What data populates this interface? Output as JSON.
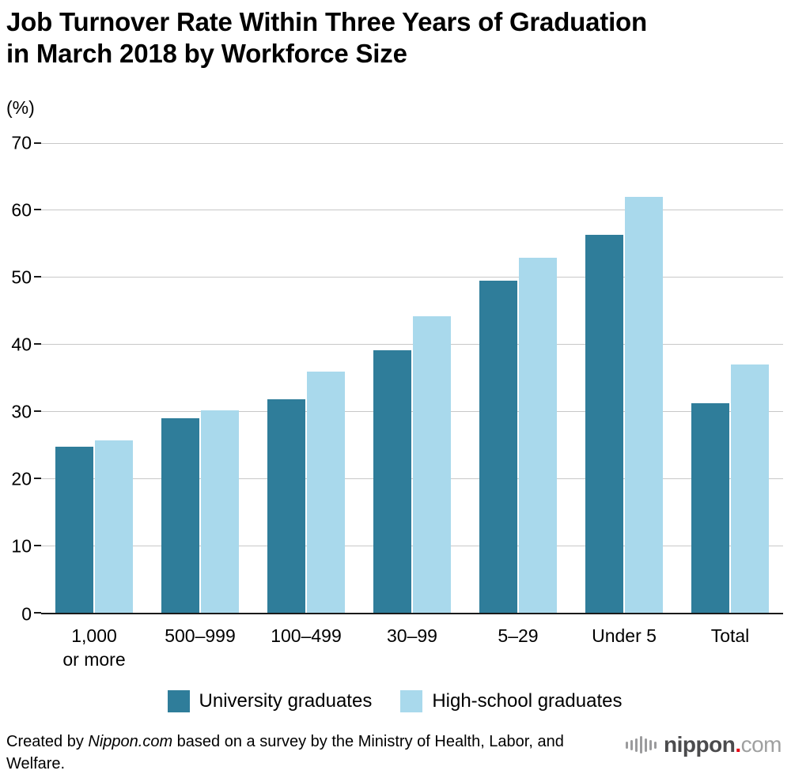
{
  "header": {
    "title_line1": "Job Turnover Rate Within Three Years of Graduation",
    "title_line2": "in March 2018 by Workforce Size"
  },
  "chart_data": {
    "type": "bar",
    "title": "Job Turnover Rate Within Three Years of Graduation in March 2018 by Workforce Size",
    "unit_label": "(%)",
    "xlabel": "",
    "ylabel": "(%)",
    "categories": [
      "1,000\nor more",
      "500–999",
      "100–499",
      "30–99",
      "5–29",
      "Under 5",
      "Total"
    ],
    "series": [
      {
        "name": "University graduates",
        "color": "#2F7D9A",
        "values": [
          24.7,
          28.9,
          31.8,
          39.1,
          49.4,
          56.3,
          31.2
        ]
      },
      {
        "name": "High-school graduates",
        "color": "#A9D9EC",
        "values": [
          25.6,
          30.1,
          35.9,
          44.1,
          52.8,
          61.9,
          36.9
        ]
      }
    ],
    "ylim": [
      0,
      70
    ],
    "yticks": [
      0,
      10,
      20,
      30,
      40,
      50,
      60,
      70
    ],
    "grid": true,
    "legend_position": "bottom"
  },
  "footer": {
    "attribution_prefix": "Created by ",
    "attribution_source": "Nippon.com",
    "attribution_suffix": " based on a survey by the Ministry of Health, Labor, and Welfare.",
    "logo": {
      "name": "nippon",
      "dot": ".",
      "tld": "com",
      "brand_red": "#E60012"
    }
  }
}
